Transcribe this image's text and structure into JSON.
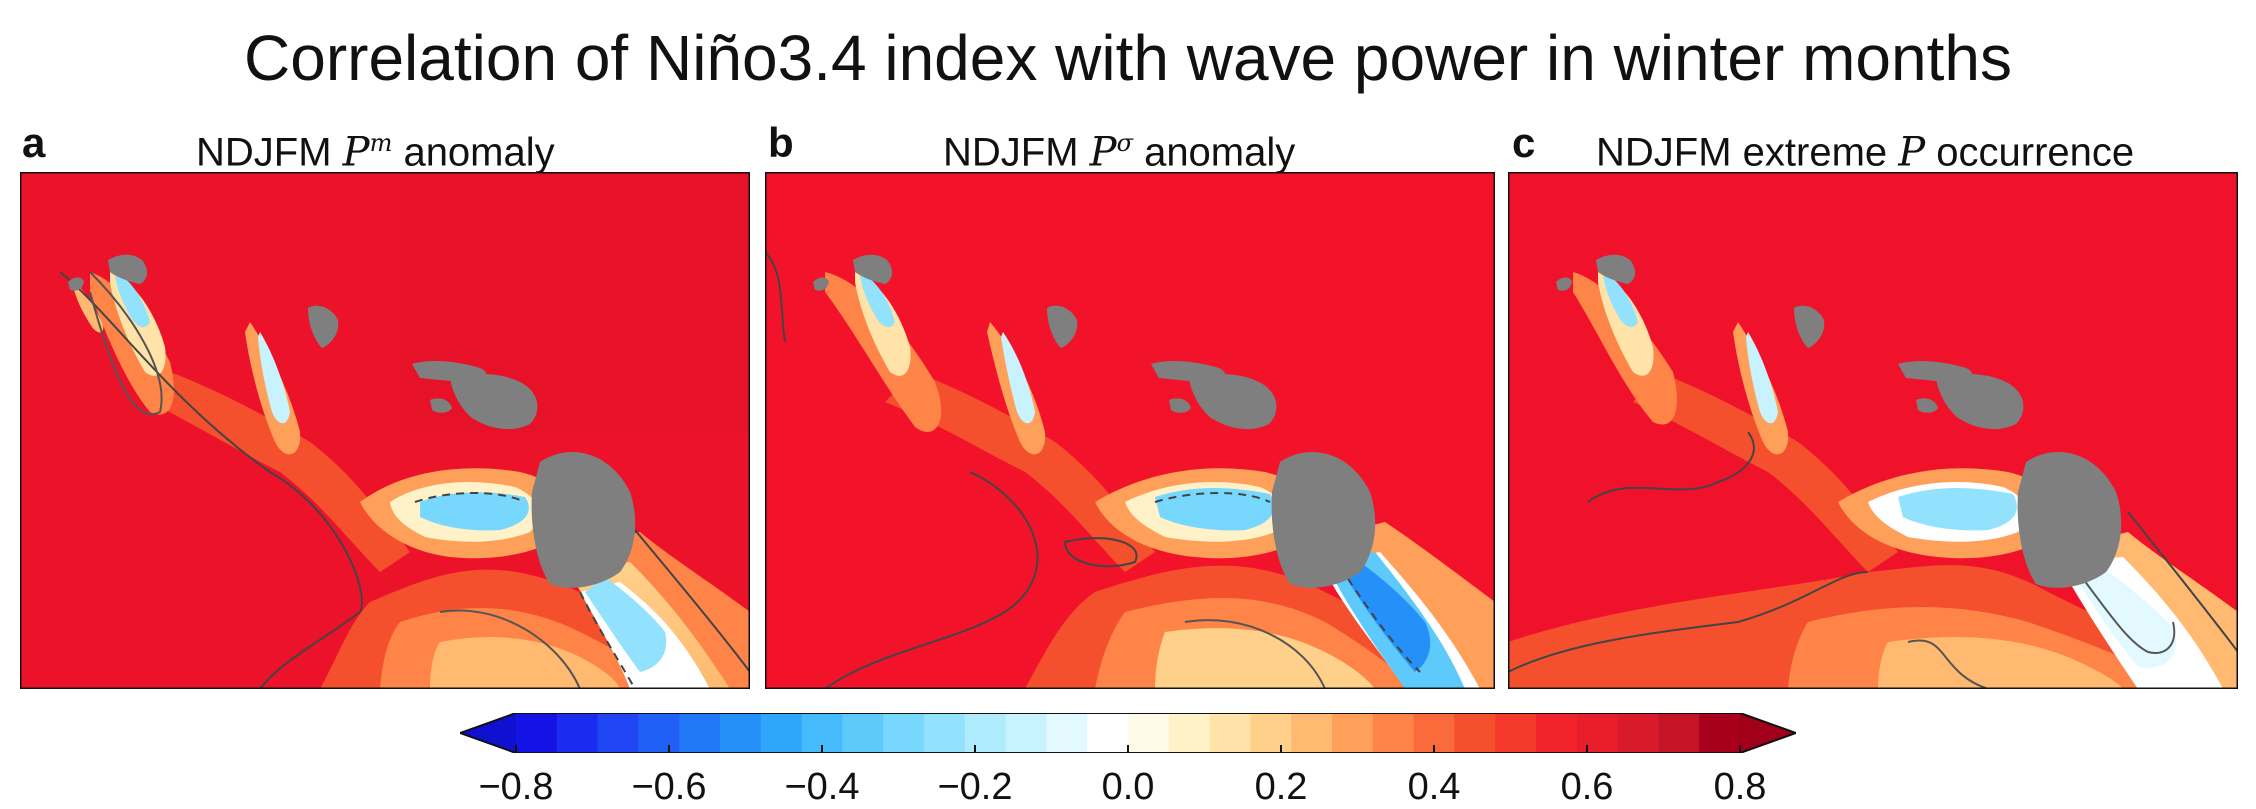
{
  "title": "Correlation of Niño3.4 index with wave power in winter months",
  "panels": [
    {
      "letter": "a",
      "pre": "NDJFM ",
      "sym": "P",
      "sup": "m",
      "post": " anomaly"
    },
    {
      "letter": "b",
      "pre": "NDJFM ",
      "sym": "P",
      "sup": "σ",
      "post": " anomaly"
    },
    {
      "letter": "c",
      "pre": "NDJFM extreme ",
      "sym": "P",
      "sup": "",
      "post": " occurrence"
    }
  ],
  "colors": {
    "land": "#7f7f7f",
    "field": "#f2132a",
    "contour": "#444444"
  },
  "chart_data": {
    "type": "heatmap",
    "title": "Correlation of Niño3.4 index with wave power in winter months",
    "colorbar": {
      "range": [
        -0.8,
        0.8
      ],
      "step": 0.05,
      "extend": "both",
      "tick_values": [
        -0.8,
        -0.6,
        -0.4,
        -0.2,
        0.0,
        0.2,
        0.4,
        0.6,
        0.8
      ],
      "tick_labels": [
        "−0.8",
        "−0.6",
        "−0.4",
        "−0.2",
        "0.0",
        "0.2",
        "0.4",
        "0.6",
        "0.8"
      ],
      "colors": [
        "#1313e6",
        "#1a2cf0",
        "#1f45f5",
        "#2060f7",
        "#2078f7",
        "#2590f8",
        "#30a6fa",
        "#45bbfb",
        "#5ecafc",
        "#78d7fc",
        "#93e2fd",
        "#aeebfd",
        "#c8f3fe",
        "#e2f9ff",
        "#ffffff",
        "#fffbe8",
        "#fff1c8",
        "#ffe3a8",
        "#ffd08a",
        "#ffb970",
        "#ffa05a",
        "#ff8448",
        "#fa6a3a",
        "#f5502e",
        "#f53a2c",
        "#f2232b",
        "#e81e2c",
        "#d81a2a",
        "#c41426",
        "#a8001c"
      ],
      "under_color": "#1010d0",
      "over_color": "#a0001a"
    },
    "panels": [
      "a",
      "b",
      "c"
    ]
  }
}
